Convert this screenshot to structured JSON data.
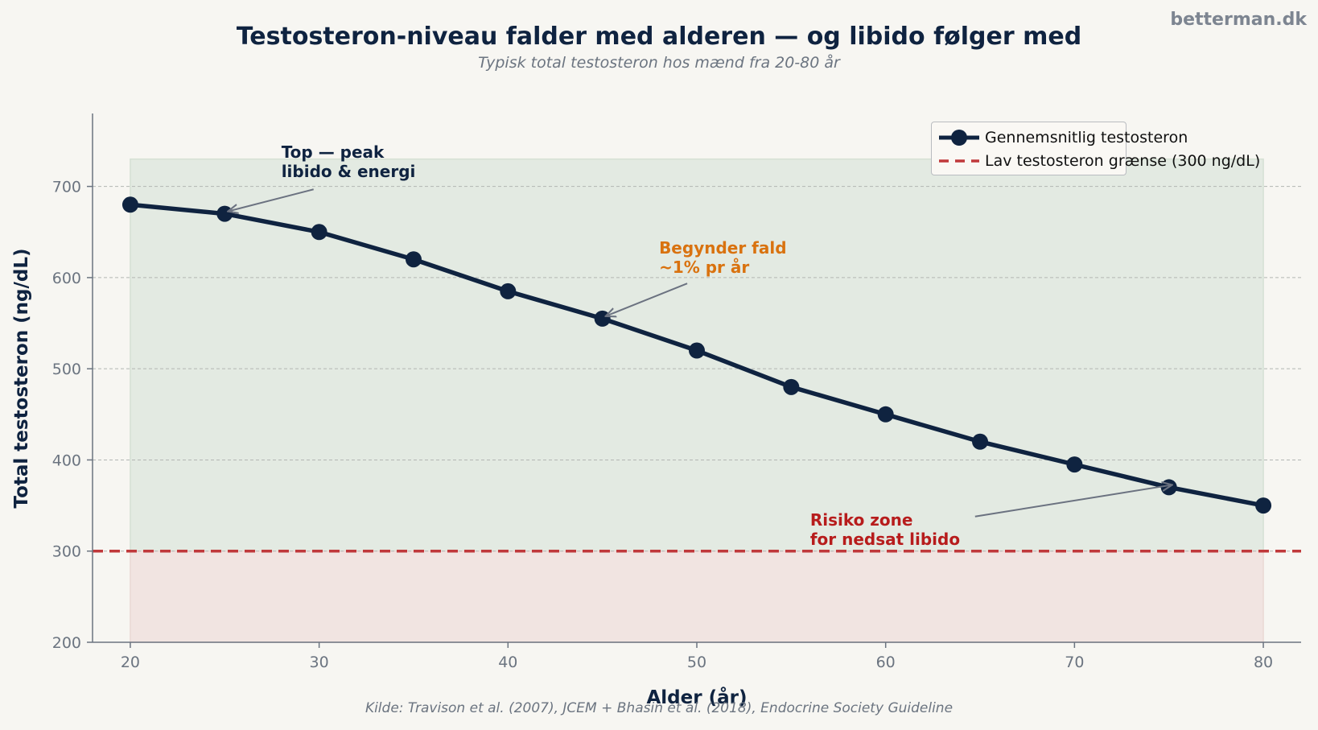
{
  "watermark": "betterman.dk",
  "source": "Kilde: Travison et al. (2007), JCEM + Bhasin et al. (2018), Endocrine Society Guideline",
  "colors": {
    "line": "#0f2340",
    "threshold": "#c0393b",
    "normal_zone": "#e3eae2",
    "risk_zone": "#f1e4e1",
    "ann_peak": "#0f2340",
    "ann_decline": "#d9720f",
    "ann_risk": "#b71c1c"
  },
  "chart_data": {
    "type": "line",
    "title": "Testosteron-niveau falder med alderen — og libido følger med",
    "subtitle": "Typisk total testosteron hos mænd fra 20-80 år",
    "xlabel": "Alder (år)",
    "ylabel": "Total testosteron (ng/dL)",
    "xlim": [
      18,
      82
    ],
    "ylim": [
      200,
      780
    ],
    "xticks": [
      20,
      30,
      40,
      50,
      60,
      70,
      80
    ],
    "yticks": [
      200,
      300,
      400,
      500,
      600,
      700
    ],
    "grid": "horizontal-dashed",
    "legend_position": "top-right",
    "series": [
      {
        "name": "Gennemsnitlig testosteron",
        "x": [
          20,
          25,
          30,
          35,
          40,
          45,
          50,
          55,
          60,
          65,
          70,
          75,
          80
        ],
        "y": [
          680,
          670,
          650,
          620,
          585,
          555,
          520,
          480,
          450,
          420,
          395,
          370,
          350
        ]
      }
    ],
    "threshold": {
      "name": "Lav testosteron grænse (300 ng/dL)",
      "y": 300
    },
    "shaded_regions": [
      {
        "zone": "normal",
        "x": [
          20,
          80
        ],
        "y": [
          300,
          730
        ]
      },
      {
        "zone": "risk",
        "x": [
          20,
          80
        ],
        "y": [
          200,
          300
        ]
      }
    ],
    "annotations": [
      {
        "id": "peak",
        "lines": [
          "Top — peak",
          "libido & energi"
        ],
        "point": [
          25,
          670
        ],
        "text_at": [
          28,
          748
        ]
      },
      {
        "id": "decline",
        "lines": [
          "Begynder fald",
          "~1% pr år"
        ],
        "point": [
          45,
          555
        ],
        "text_at": [
          48,
          643
        ]
      },
      {
        "id": "risk",
        "lines": [
          "Risiko zone",
          "for nedsat libido"
        ],
        "point": [
          75,
          370
        ],
        "text_at": [
          56,
          345
        ]
      }
    ]
  }
}
